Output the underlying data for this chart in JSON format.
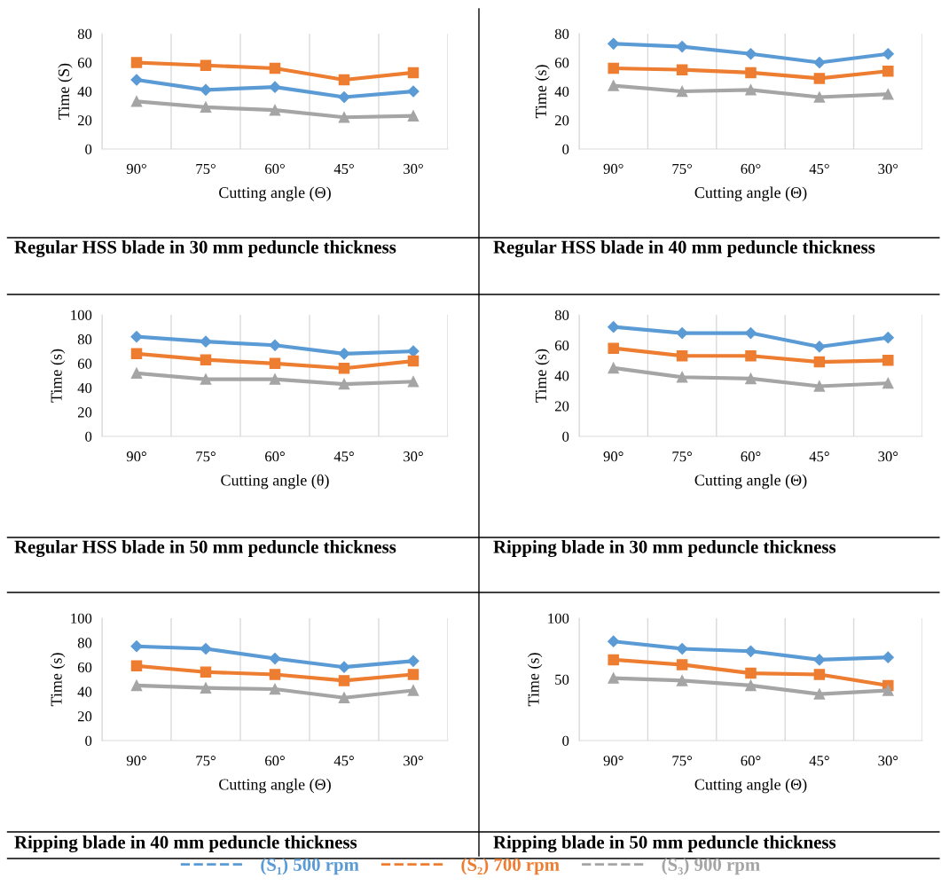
{
  "chart_data": [
    {
      "type": "line",
      "title": "Regular HSS blade in 30 mm peduncle thickness",
      "xlabel": "Cutting angle (Θ)",
      "ylabel": "Time (S)",
      "categories": [
        "90°",
        "75°",
        "60°",
        "45°",
        "30°"
      ],
      "ylim": [
        0,
        80
      ],
      "yticks": [
        0,
        20,
        40,
        60,
        80
      ],
      "grid": "x",
      "series": [
        {
          "color": "#5b9bd5",
          "marker": "diamond",
          "values": [
            48,
            41,
            43,
            36,
            40
          ]
        },
        {
          "color": "#ed7d31",
          "marker": "square",
          "values": [
            60,
            58,
            56,
            48,
            53
          ]
        },
        {
          "color": "#a5a5a5",
          "marker": "triangle",
          "values": [
            33,
            29,
            27,
            22,
            23
          ]
        }
      ]
    },
    {
      "type": "line",
      "title": "Regular HSS blade in 40 mm peduncle thickness",
      "xlabel": "Cutting angle (Θ)",
      "ylabel": "Time (s)",
      "categories": [
        "90°",
        "75°",
        "60°",
        "45°",
        "30°"
      ],
      "ylim": [
        0,
        80
      ],
      "yticks": [
        0,
        20,
        40,
        60,
        80
      ],
      "grid": "x",
      "series": [
        {
          "color": "#5b9bd5",
          "marker": "diamond",
          "values": [
            73,
            71,
            66,
            60,
            66
          ]
        },
        {
          "color": "#ed7d31",
          "marker": "square",
          "values": [
            56,
            55,
            53,
            49,
            54
          ]
        },
        {
          "color": "#a5a5a5",
          "marker": "triangle",
          "values": [
            44,
            40,
            41,
            36,
            38
          ]
        }
      ]
    },
    {
      "type": "line",
      "title": "Regular HSS blade in 50 mm peduncle thickness",
      "xlabel": "Cutting angle (θ)",
      "ylabel": "Time (s)",
      "categories": [
        "90°",
        "75°",
        "60°",
        "45°",
        "30°"
      ],
      "ylim": [
        0,
        100
      ],
      "yticks": [
        0,
        20,
        40,
        60,
        80,
        100
      ],
      "grid": "x",
      "series": [
        {
          "color": "#5b9bd5",
          "marker": "diamond",
          "values": [
            82,
            78,
            75,
            68,
            70
          ]
        },
        {
          "color": "#ed7d31",
          "marker": "square",
          "values": [
            68,
            63,
            60,
            56,
            62
          ]
        },
        {
          "color": "#a5a5a5",
          "marker": "triangle",
          "values": [
            52,
            47,
            47,
            43,
            45
          ]
        }
      ]
    },
    {
      "type": "line",
      "title": "Ripping blade in 30 mm peduncle thickness",
      "xlabel": "Cutting angle (Θ)",
      "ylabel": "Time (s)",
      "categories": [
        "90°",
        "75°",
        "60°",
        "45°",
        "30°"
      ],
      "ylim": [
        0,
        80
      ],
      "yticks": [
        0,
        20,
        40,
        60,
        80
      ],
      "grid": "x",
      "series": [
        {
          "color": "#5b9bd5",
          "marker": "diamond",
          "values": [
            72,
            68,
            68,
            59,
            65
          ]
        },
        {
          "color": "#ed7d31",
          "marker": "square",
          "values": [
            58,
            53,
            53,
            49,
            50
          ]
        },
        {
          "color": "#a5a5a5",
          "marker": "triangle",
          "values": [
            45,
            39,
            38,
            33,
            35
          ]
        }
      ]
    },
    {
      "type": "line",
      "title": "Ripping blade in 40 mm peduncle thickness",
      "xlabel": "Cutting angle (Θ)",
      "ylabel": "Time (s)",
      "categories": [
        "90°",
        "75°",
        "60°",
        "45°",
        "30°"
      ],
      "ylim": [
        0,
        100
      ],
      "yticks": [
        0,
        20,
        40,
        60,
        80,
        100
      ],
      "grid": "x",
      "series": [
        {
          "color": "#5b9bd5",
          "marker": "diamond",
          "values": [
            77,
            75,
            67,
            60,
            65
          ]
        },
        {
          "color": "#ed7d31",
          "marker": "square",
          "values": [
            61,
            56,
            54,
            49,
            54
          ]
        },
        {
          "color": "#a5a5a5",
          "marker": "triangle",
          "values": [
            45,
            43,
            42,
            35,
            41
          ]
        }
      ]
    },
    {
      "type": "line",
      "title": "Ripping blade in 50 mm peduncle thickness",
      "xlabel": "Cutting angle (Θ)",
      "ylabel": "Time (s)",
      "categories": [
        "90°",
        "75°",
        "60°",
        "45°",
        "30°"
      ],
      "ylim": [
        0,
        100
      ],
      "yticks": [
        0,
        50,
        100
      ],
      "grid": "x",
      "legend": "bottom",
      "series": [
        {
          "name": "(S₁) 500 rpm",
          "color": "#5b9bd5",
          "marker": "diamond",
          "values": [
            81,
            75,
            73,
            66,
            68
          ]
        },
        {
          "name": "(S₂) 700 rpm",
          "color": "#ed7d31",
          "marker": "square",
          "values": [
            66,
            62,
            55,
            54,
            45
          ]
        },
        {
          "name": "(S₃) 900 rpm",
          "color": "#a5a5a5",
          "marker": "triangle",
          "values": [
            51,
            49,
            45,
            38,
            41
          ]
        }
      ]
    }
  ]
}
